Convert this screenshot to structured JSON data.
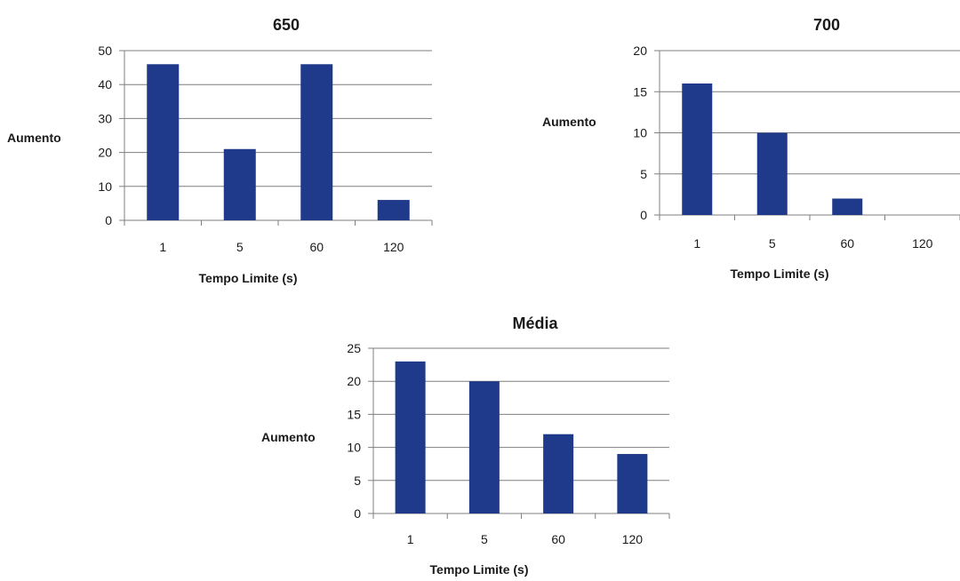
{
  "chart_data": [
    {
      "type": "bar",
      "title": "650",
      "xlabel": "Tempo Limite (s)",
      "ylabel": "Aumento",
      "categories": [
        "1",
        "5",
        "60",
        "120"
      ],
      "values": [
        46,
        21,
        46,
        6
      ],
      "ylim": [
        0,
        50
      ],
      "yticks": [
        0,
        10,
        20,
        30,
        40,
        50
      ],
      "grid": true,
      "bar_color": "#1f3a8a"
    },
    {
      "type": "bar",
      "title": "700",
      "xlabel": "Tempo Limite (s)",
      "ylabel": "Aumento",
      "categories": [
        "1",
        "5",
        "60",
        "120"
      ],
      "values": [
        16,
        10,
        2,
        0
      ],
      "ylim": [
        0,
        20
      ],
      "yticks": [
        0,
        5,
        10,
        15,
        20
      ],
      "grid": true,
      "bar_color": "#1f3a8a"
    },
    {
      "type": "bar",
      "title": "Média",
      "xlabel": "Tempo Limite (s)",
      "ylabel": "Aumento",
      "categories": [
        "1",
        "5",
        "60",
        "120"
      ],
      "values": [
        23,
        20,
        12,
        9
      ],
      "ylim": [
        0,
        25
      ],
      "yticks": [
        0,
        5,
        10,
        15,
        20,
        25
      ],
      "grid": true,
      "bar_color": "#1f3a8a"
    }
  ]
}
